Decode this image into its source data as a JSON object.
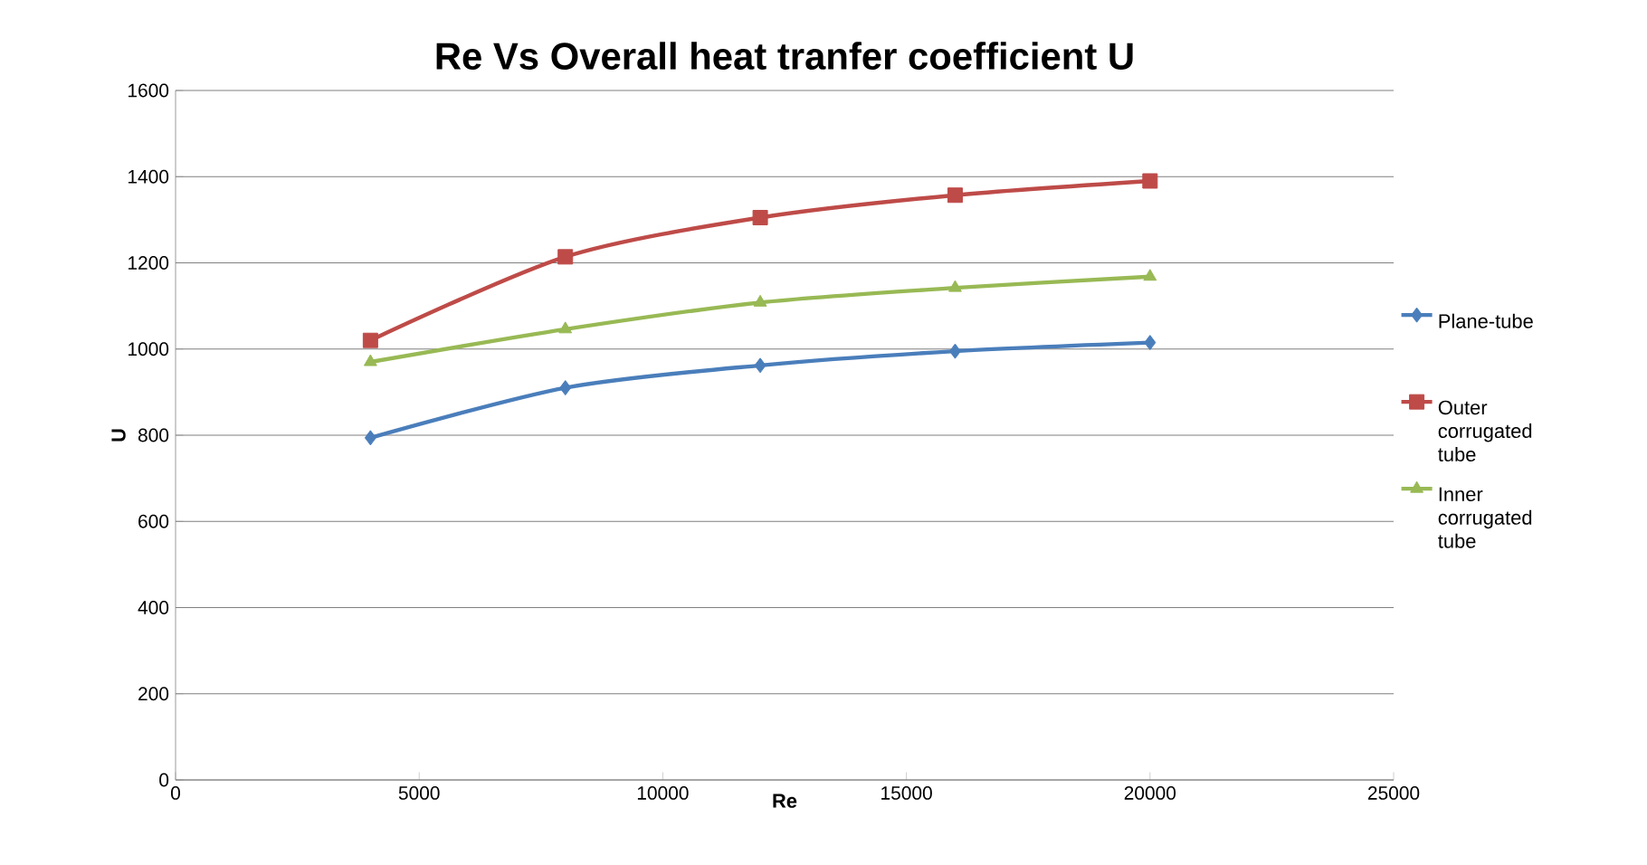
{
  "chart_data": {
    "type": "line",
    "title": "Re  Vs Overall heat tranfer coefficient U",
    "xlabel": "Re",
    "ylabel": "U",
    "x": [
      4000,
      8000,
      12000,
      16000,
      20000
    ],
    "series": [
      {
        "name": "Plane-tube",
        "color": "#4a7ebb",
        "marker": "diamond",
        "values": [
          794,
          910,
          962,
          995,
          1015
        ]
      },
      {
        "name": "Outer corrugated tube",
        "color": "#be4b48",
        "marker": "square",
        "values": [
          1020,
          1214,
          1305,
          1357,
          1390
        ]
      },
      {
        "name": "Inner corrugated tube",
        "color": "#98b954",
        "marker": "triangle",
        "values": [
          970,
          1046,
          1108,
          1142,
          1168
        ]
      }
    ],
    "xlim": [
      0,
      25000
    ],
    "xticks": [
      0,
      5000,
      10000,
      15000,
      20000,
      25000
    ],
    "ylim": [
      0,
      1600
    ],
    "yticks": [
      0,
      200,
      400,
      600,
      800,
      1000,
      1200,
      1400,
      1600
    ],
    "grid": "y",
    "legend": "right"
  }
}
